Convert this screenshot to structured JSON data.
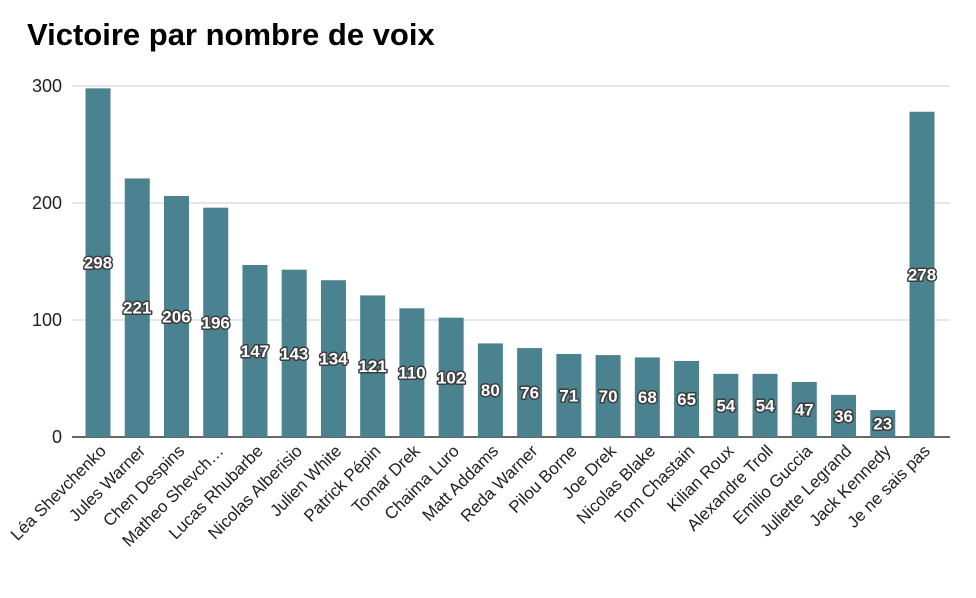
{
  "chart_data": {
    "type": "bar",
    "title": "Victoire par nombre de voix",
    "xlabel": "",
    "ylabel": "",
    "ylim": [
      0,
      300
    ],
    "yticks": [
      0,
      100,
      200,
      300
    ],
    "grid": true,
    "legend": "none",
    "bar_color": "#4a8290",
    "categories": [
      "Léa Shevchenko",
      "Jules Warner",
      "Chen Despins",
      "Matheo Shevch…",
      "Lucas Rhubarbe",
      "Nicolas Alberisio",
      "Julien White",
      "Patrick Pépin",
      "Tomar Drek",
      "Chaima Luro",
      "Matt Addams",
      "Reda Warner",
      "Pilou Borne",
      "Joe Drek",
      "Nicolas Blake",
      "Tom Chastain",
      "Kilian Roux",
      "Alexandre Troll",
      "Emilio Guccia",
      "Juliette Legrand",
      "Jack Kennedy",
      "Je ne sais pas"
    ],
    "values": [
      298,
      221,
      206,
      196,
      147,
      143,
      134,
      121,
      110,
      102,
      80,
      76,
      71,
      70,
      68,
      65,
      54,
      54,
      47,
      36,
      23,
      278
    ]
  }
}
